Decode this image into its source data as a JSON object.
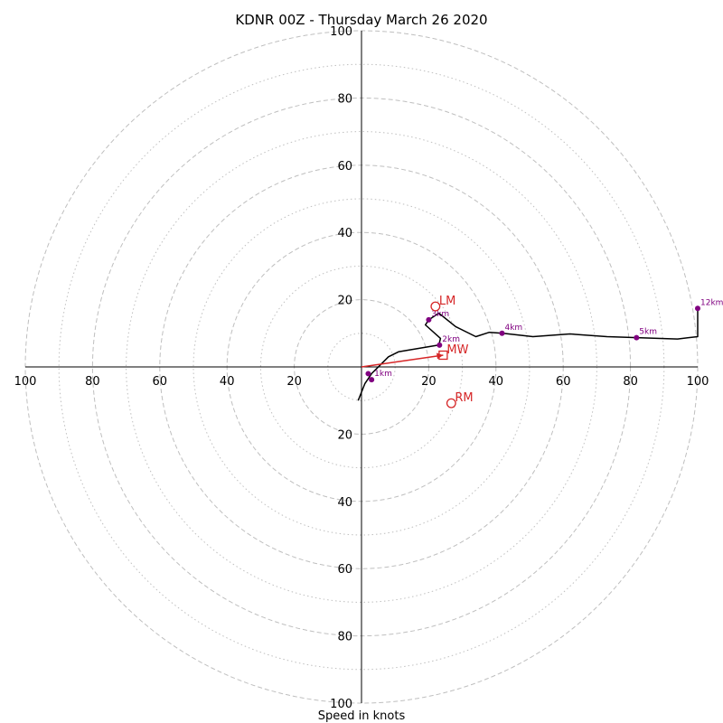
{
  "chart_data": {
    "type": "hodograph",
    "title": "KDNR 00Z - Thursday March 26 2020",
    "xlabel": "Speed in knots",
    "ring_labels": [
      "20",
      "40",
      "60",
      "80",
      "100"
    ],
    "ring_major_step": 20,
    "ring_minor_offset": 10,
    "xlim": [
      -100,
      100
    ],
    "ylim": [
      -100,
      100
    ],
    "grid": true,
    "colors": {
      "trace": "#000000",
      "height_marker": "#800080",
      "motion": "#d62728",
      "grid": "#bfbfbf",
      "axis": "#000000"
    },
    "trace": [
      [
        -1,
        -10
      ],
      [
        1,
        -5
      ],
      [
        3,
        -2
      ],
      [
        6,
        1
      ],
      [
        8,
        3
      ],
      [
        11,
        4.5
      ],
      [
        17,
        5.5
      ],
      [
        23,
        6.5
      ],
      [
        23.5,
        8.5
      ],
      [
        19,
        12.5
      ],
      [
        20,
        14
      ],
      [
        23,
        16
      ],
      [
        28,
        12
      ],
      [
        34,
        9
      ],
      [
        38,
        10.3
      ],
      [
        42,
        10
      ],
      [
        51,
        9
      ],
      [
        62,
        9.8
      ],
      [
        73,
        9
      ],
      [
        82,
        8.7
      ],
      [
        94,
        8.3
      ],
      [
        100,
        9
      ],
      [
        100,
        17.4
      ]
    ],
    "height_markers": [
      {
        "label": "1km",
        "u": 3,
        "v": -3.8
      },
      {
        "label": "",
        "u": 2,
        "v": -2
      },
      {
        "label": "2km",
        "u": 23.2,
        "v": 6.5
      },
      {
        "label": "3km",
        "u": 20,
        "v": 14
      },
      {
        "label": "4km",
        "u": 41.8,
        "v": 10
      },
      {
        "label": "5km",
        "u": 81.8,
        "v": 8.7
      },
      {
        "label": "12km",
        "u": 100,
        "v": 17.4
      }
    ],
    "storm_motion": [
      {
        "label": "LM",
        "u": 22,
        "v": 18,
        "marker": "circle"
      },
      {
        "label": "RM",
        "u": 26.7,
        "v": -10.8,
        "marker": "circle"
      },
      {
        "label": "MW",
        "u": 24.3,
        "v": 3.5,
        "marker": "square"
      }
    ],
    "shear_vector": {
      "from": [
        0,
        0
      ],
      "to": [
        24.3,
        3.5
      ]
    }
  }
}
